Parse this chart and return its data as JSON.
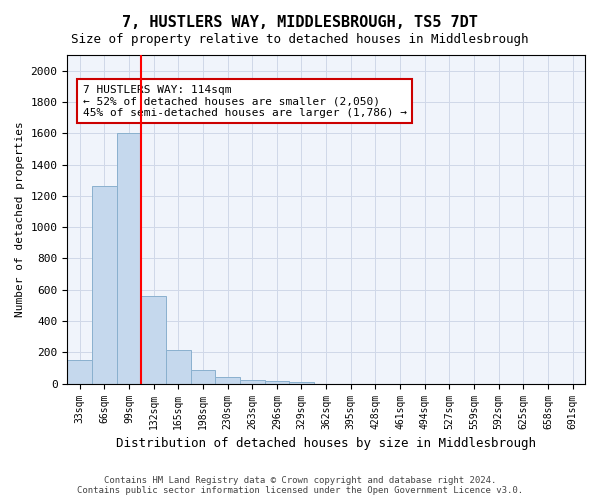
{
  "title": "7, HUSTLERS WAY, MIDDLESBROUGH, TS5 7DT",
  "subtitle": "Size of property relative to detached houses in Middlesbrough",
  "xlabel": "Distribution of detached houses by size in Middlesbrough",
  "ylabel": "Number of detached properties",
  "bar_values": [
    150,
    1265,
    1600,
    560,
    215,
    90,
    45,
    25,
    15,
    10,
    0,
    0,
    0,
    0,
    0,
    0,
    0,
    0,
    0,
    0,
    0
  ],
  "bar_labels": [
    "33sqm",
    "66sqm",
    "99sqm",
    "132sqm",
    "165sqm",
    "198sqm",
    "230sqm",
    "263sqm",
    "296sqm",
    "329sqm",
    "362sqm",
    "395sqm",
    "428sqm",
    "461sqm",
    "494sqm",
    "527sqm",
    "559sqm",
    "592sqm",
    "625sqm",
    "658sqm",
    "691sqm"
  ],
  "bar_color": "#c5d8ed",
  "bar_edge_color": "#8ab0ce",
  "bar_width": 1.0,
  "ylim": [
    0,
    2100
  ],
  "yticks": [
    0,
    200,
    400,
    600,
    800,
    1000,
    1200,
    1400,
    1600,
    1800,
    2000
  ],
  "red_line_x": 2.5,
  "annotation_line1": "7 HUSTLERS WAY: 114sqm",
  "annotation_line2": "← 52% of detached houses are smaller (2,050)",
  "annotation_line3": "45% of semi-detached houses are larger (1,786) →",
  "annotation_box_color": "#ffffff",
  "annotation_box_edge": "#cc0000",
  "grid_color": "#d0d8e8",
  "background_color": "#f0f4fb",
  "footer_line1": "Contains HM Land Registry data © Crown copyright and database right 2024.",
  "footer_line2": "Contains public sector information licensed under the Open Government Licence v3.0."
}
